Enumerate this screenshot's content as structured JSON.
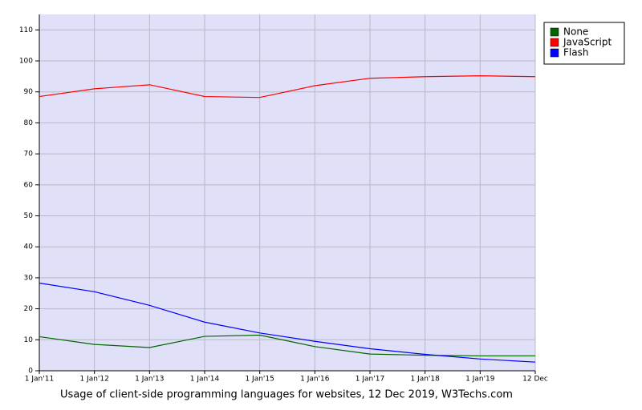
{
  "chart_data": {
    "type": "line",
    "caption": "Usage of client-side programming languages for websites, 12 Dec 2019, W3Techs.com",
    "categories": [
      "1 Jan'11",
      "1 Jan'12",
      "1 Jan'13",
      "1 Jan'14",
      "1 Jan'15",
      "1 Jan'16",
      "1 Jan'17",
      "1 Jan'18",
      "1 Jan'19",
      "12 Dec"
    ],
    "series": [
      {
        "name": "None",
        "color": "#006400",
        "values": [
          11,
          8.5,
          7.5,
          11.1,
          11.5,
          7.8,
          5.4,
          5,
          4.8,
          4.8
        ]
      },
      {
        "name": "JavaScript",
        "color": "#ff0000",
        "values": [
          88.5,
          91,
          92.3,
          88.5,
          88.2,
          92,
          94.4,
          94.9,
          95.2,
          94.9
        ]
      },
      {
        "name": "Flash",
        "color": "#0000ff",
        "values": [
          28.3,
          25.5,
          21.1,
          15.7,
          12.2,
          9.5,
          7.1,
          5.3,
          3.8,
          2.8
        ]
      }
    ],
    "ylim": [
      0,
      115
    ],
    "yticks": [
      0,
      10,
      20,
      30,
      40,
      50,
      60,
      70,
      80,
      90,
      100,
      110
    ],
    "grid": true,
    "background": "#e0e0f8",
    "legend": "top-right"
  }
}
